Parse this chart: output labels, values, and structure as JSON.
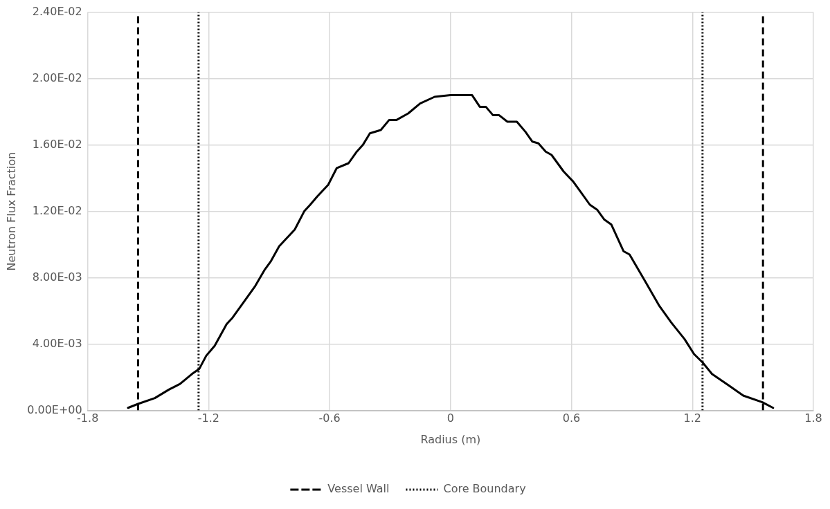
{
  "chart_data": {
    "type": "line",
    "xlabel": "Radius (m)",
    "ylabel": "Neutron Flux Fraction",
    "xlim": [
      -1.8,
      1.8
    ],
    "xticks": [
      -1.8,
      -1.2,
      -0.6,
      0,
      0.6,
      1.2,
      1.8
    ],
    "ylim": [
      0,
      0.024
    ],
    "yticks": [
      {
        "value": 0,
        "label": "0.00E+00"
      },
      {
        "value": 0.004,
        "label": "4.00E-03"
      },
      {
        "value": 0.008,
        "label": "8.00E-03"
      },
      {
        "value": 0.012,
        "label": "1.20E-02"
      },
      {
        "value": 0.016,
        "label": "1.60E-02"
      },
      {
        "value": 0.02,
        "label": "2.00E-02"
      },
      {
        "value": 0.024,
        "label": "2.40E-02"
      }
    ],
    "grid": true,
    "legend": "bottom",
    "marker": "none",
    "line_style": "solid",
    "x": [
      -1.6,
      -1.55,
      -1.467,
      -1.396,
      -1.342,
      -1.283,
      -1.247,
      -1.212,
      -1.17,
      -1.111,
      -1.081,
      -1.028,
      -0.969,
      -0.921,
      -0.891,
      -0.85,
      -0.773,
      -0.726,
      -0.696,
      -0.661,
      -0.607,
      -0.565,
      -0.506,
      -0.465,
      -0.435,
      -0.4,
      -0.346,
      -0.305,
      -0.269,
      -0.21,
      -0.151,
      -0.079,
      0,
      0.05,
      0.107,
      0.145,
      0.175,
      0.21,
      0.24,
      0.282,
      0.329,
      0.371,
      0.406,
      0.436,
      0.472,
      0.501,
      0.561,
      0.608,
      0.644,
      0.691,
      0.727,
      0.763,
      0.798,
      0.858,
      0.888,
      0.965,
      1.036,
      1.095,
      1.161,
      1.208,
      1.25,
      1.297,
      1.381,
      1.452,
      1.547,
      1.6
    ],
    "series": [
      {
        "color": "#000000",
        "values": [
          0.00016,
          0.0004,
          0.00075,
          0.00127,
          0.0016,
          0.0022,
          0.0025,
          0.0033,
          0.0039,
          0.0052,
          0.0056,
          0.0065,
          0.0075,
          0.0085,
          0.009,
          0.0099,
          0.0109,
          0.012,
          0.0124,
          0.0129,
          0.0136,
          0.0146,
          0.0149,
          0.0156,
          0.016,
          0.0167,
          0.0169,
          0.0175,
          0.0175,
          0.0179,
          0.0185,
          0.0189,
          0.019,
          0.019,
          0.019,
          0.0183,
          0.0183,
          0.0178,
          0.0178,
          0.0174,
          0.0174,
          0.0168,
          0.0162,
          0.0161,
          0.0156,
          0.0154,
          0.0144,
          0.0138,
          0.0132,
          0.0124,
          0.0121,
          0.0115,
          0.0112,
          0.0096,
          0.0094,
          0.0078,
          0.0063,
          0.0053,
          0.0043,
          0.0034,
          0.0029,
          0.0022,
          0.0015,
          0.0009,
          0.0005,
          0.00016
        ]
      }
    ],
    "ref_lines": [
      {
        "axis": "x",
        "value": -1.55,
        "label": "Vessel Wall",
        "line_style": "dashed",
        "color": "#000000"
      },
      {
        "axis": "x",
        "value": 1.55,
        "line_style": "dashed",
        "color": "#000000"
      },
      {
        "axis": "x",
        "value": -1.25,
        "label": "Core Boundary",
        "line_style": "dotted",
        "color": "#000000"
      },
      {
        "axis": "x",
        "value": 1.25,
        "line_style": "dotted",
        "color": "#000000"
      }
    ]
  }
}
